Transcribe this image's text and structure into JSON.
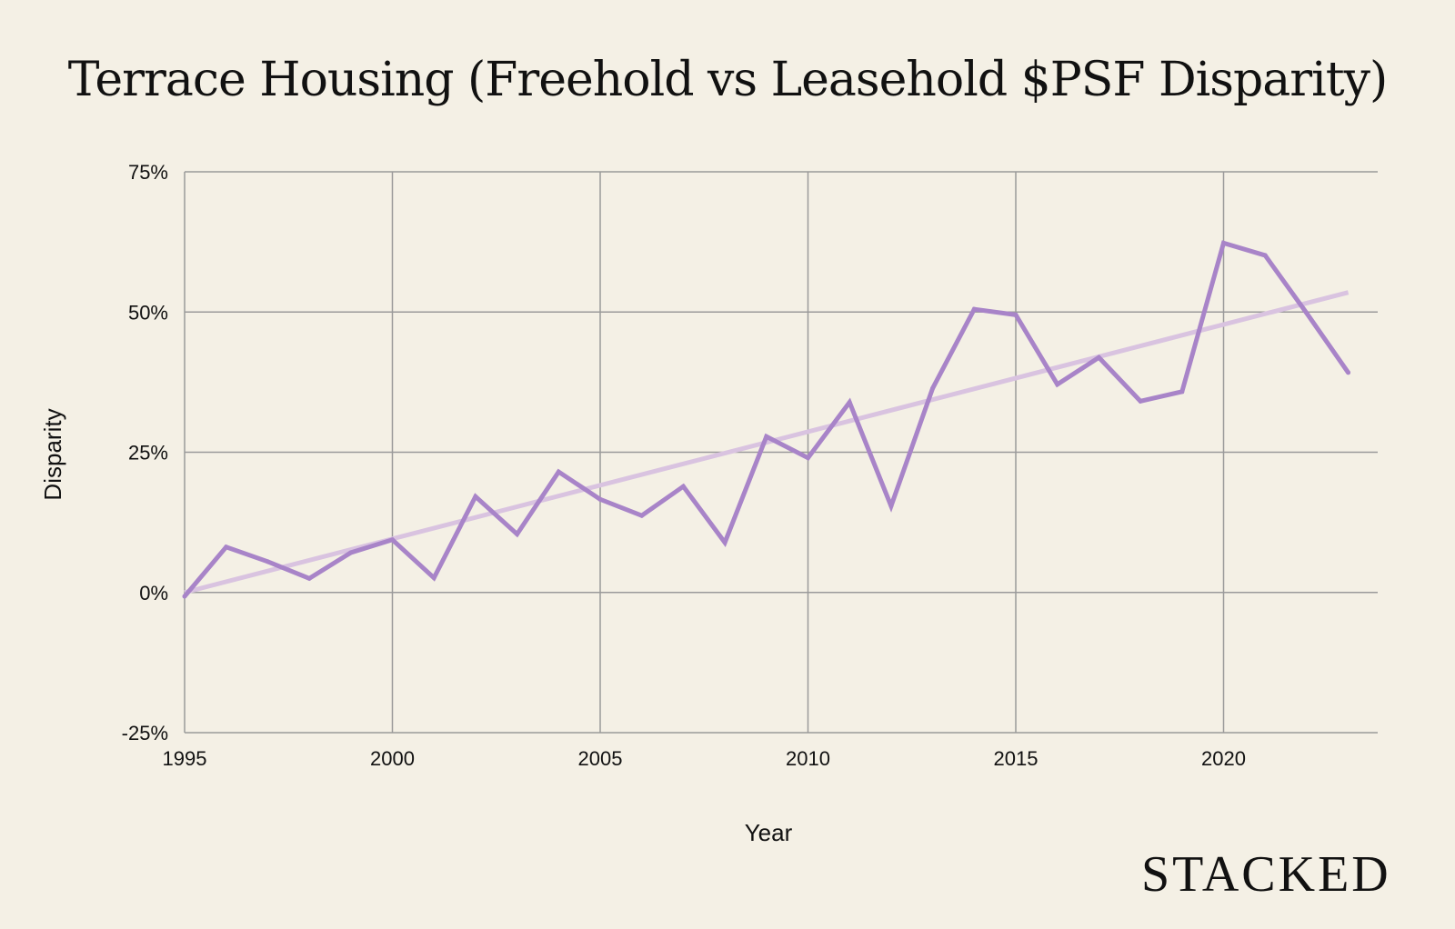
{
  "chart_data": {
    "type": "line",
    "title": "Terrace Housing (Freehold vs Leasehold $PSF Disparity)",
    "xlabel": "Year",
    "ylabel": "Disparity",
    "x": [
      1995,
      1996,
      1997,
      1998,
      1999,
      2000,
      2001,
      2002,
      2003,
      2004,
      2005,
      2006,
      2007,
      2008,
      2009,
      2010,
      2011,
      2012,
      2013,
      2014,
      2015,
      2016,
      2017,
      2018,
      2019,
      2020,
      2021,
      2022,
      2023
    ],
    "series": [
      {
        "name": "Disparity",
        "color": "#a884c8",
        "values": [
          -0.7,
          8.1,
          5.5,
          2.5,
          7.1,
          9.4,
          2.6,
          17.1,
          10.4,
          21.5,
          16.6,
          13.7,
          18.9,
          8.9,
          27.8,
          24.0,
          33.9,
          15.4,
          36.4,
          50.5,
          49.5,
          37.1,
          41.9,
          34.1,
          35.8,
          62.3,
          60.1,
          49.8,
          39.2
        ]
      },
      {
        "name": "Trendline",
        "color": "#d9c3e0",
        "type": "linear-trend",
        "start": {
          "x": 1995,
          "y": 0.0
        },
        "end": {
          "x": 2023,
          "y": 53.5
        }
      }
    ],
    "xlim": [
      1995,
      2023.7
    ],
    "ylim": [
      -25,
      75
    ],
    "xticks": [
      1995,
      2000,
      2005,
      2010,
      2015,
      2020
    ],
    "xtick_labels": [
      "1995",
      "2000",
      "2005",
      "2010",
      "2015",
      "2020"
    ],
    "yticks": [
      -25,
      0,
      25,
      50,
      75
    ],
    "ytick_labels": [
      "-25%",
      "0%",
      "25%",
      "50%",
      "75%"
    ],
    "grid": true,
    "legend": "none"
  },
  "branding": {
    "logo_text": "STACKED"
  },
  "colors": {
    "background": "#f4f0e5",
    "grid": "#9a9a9a",
    "line": "#a884c8",
    "trend": "#d9c3e0"
  }
}
